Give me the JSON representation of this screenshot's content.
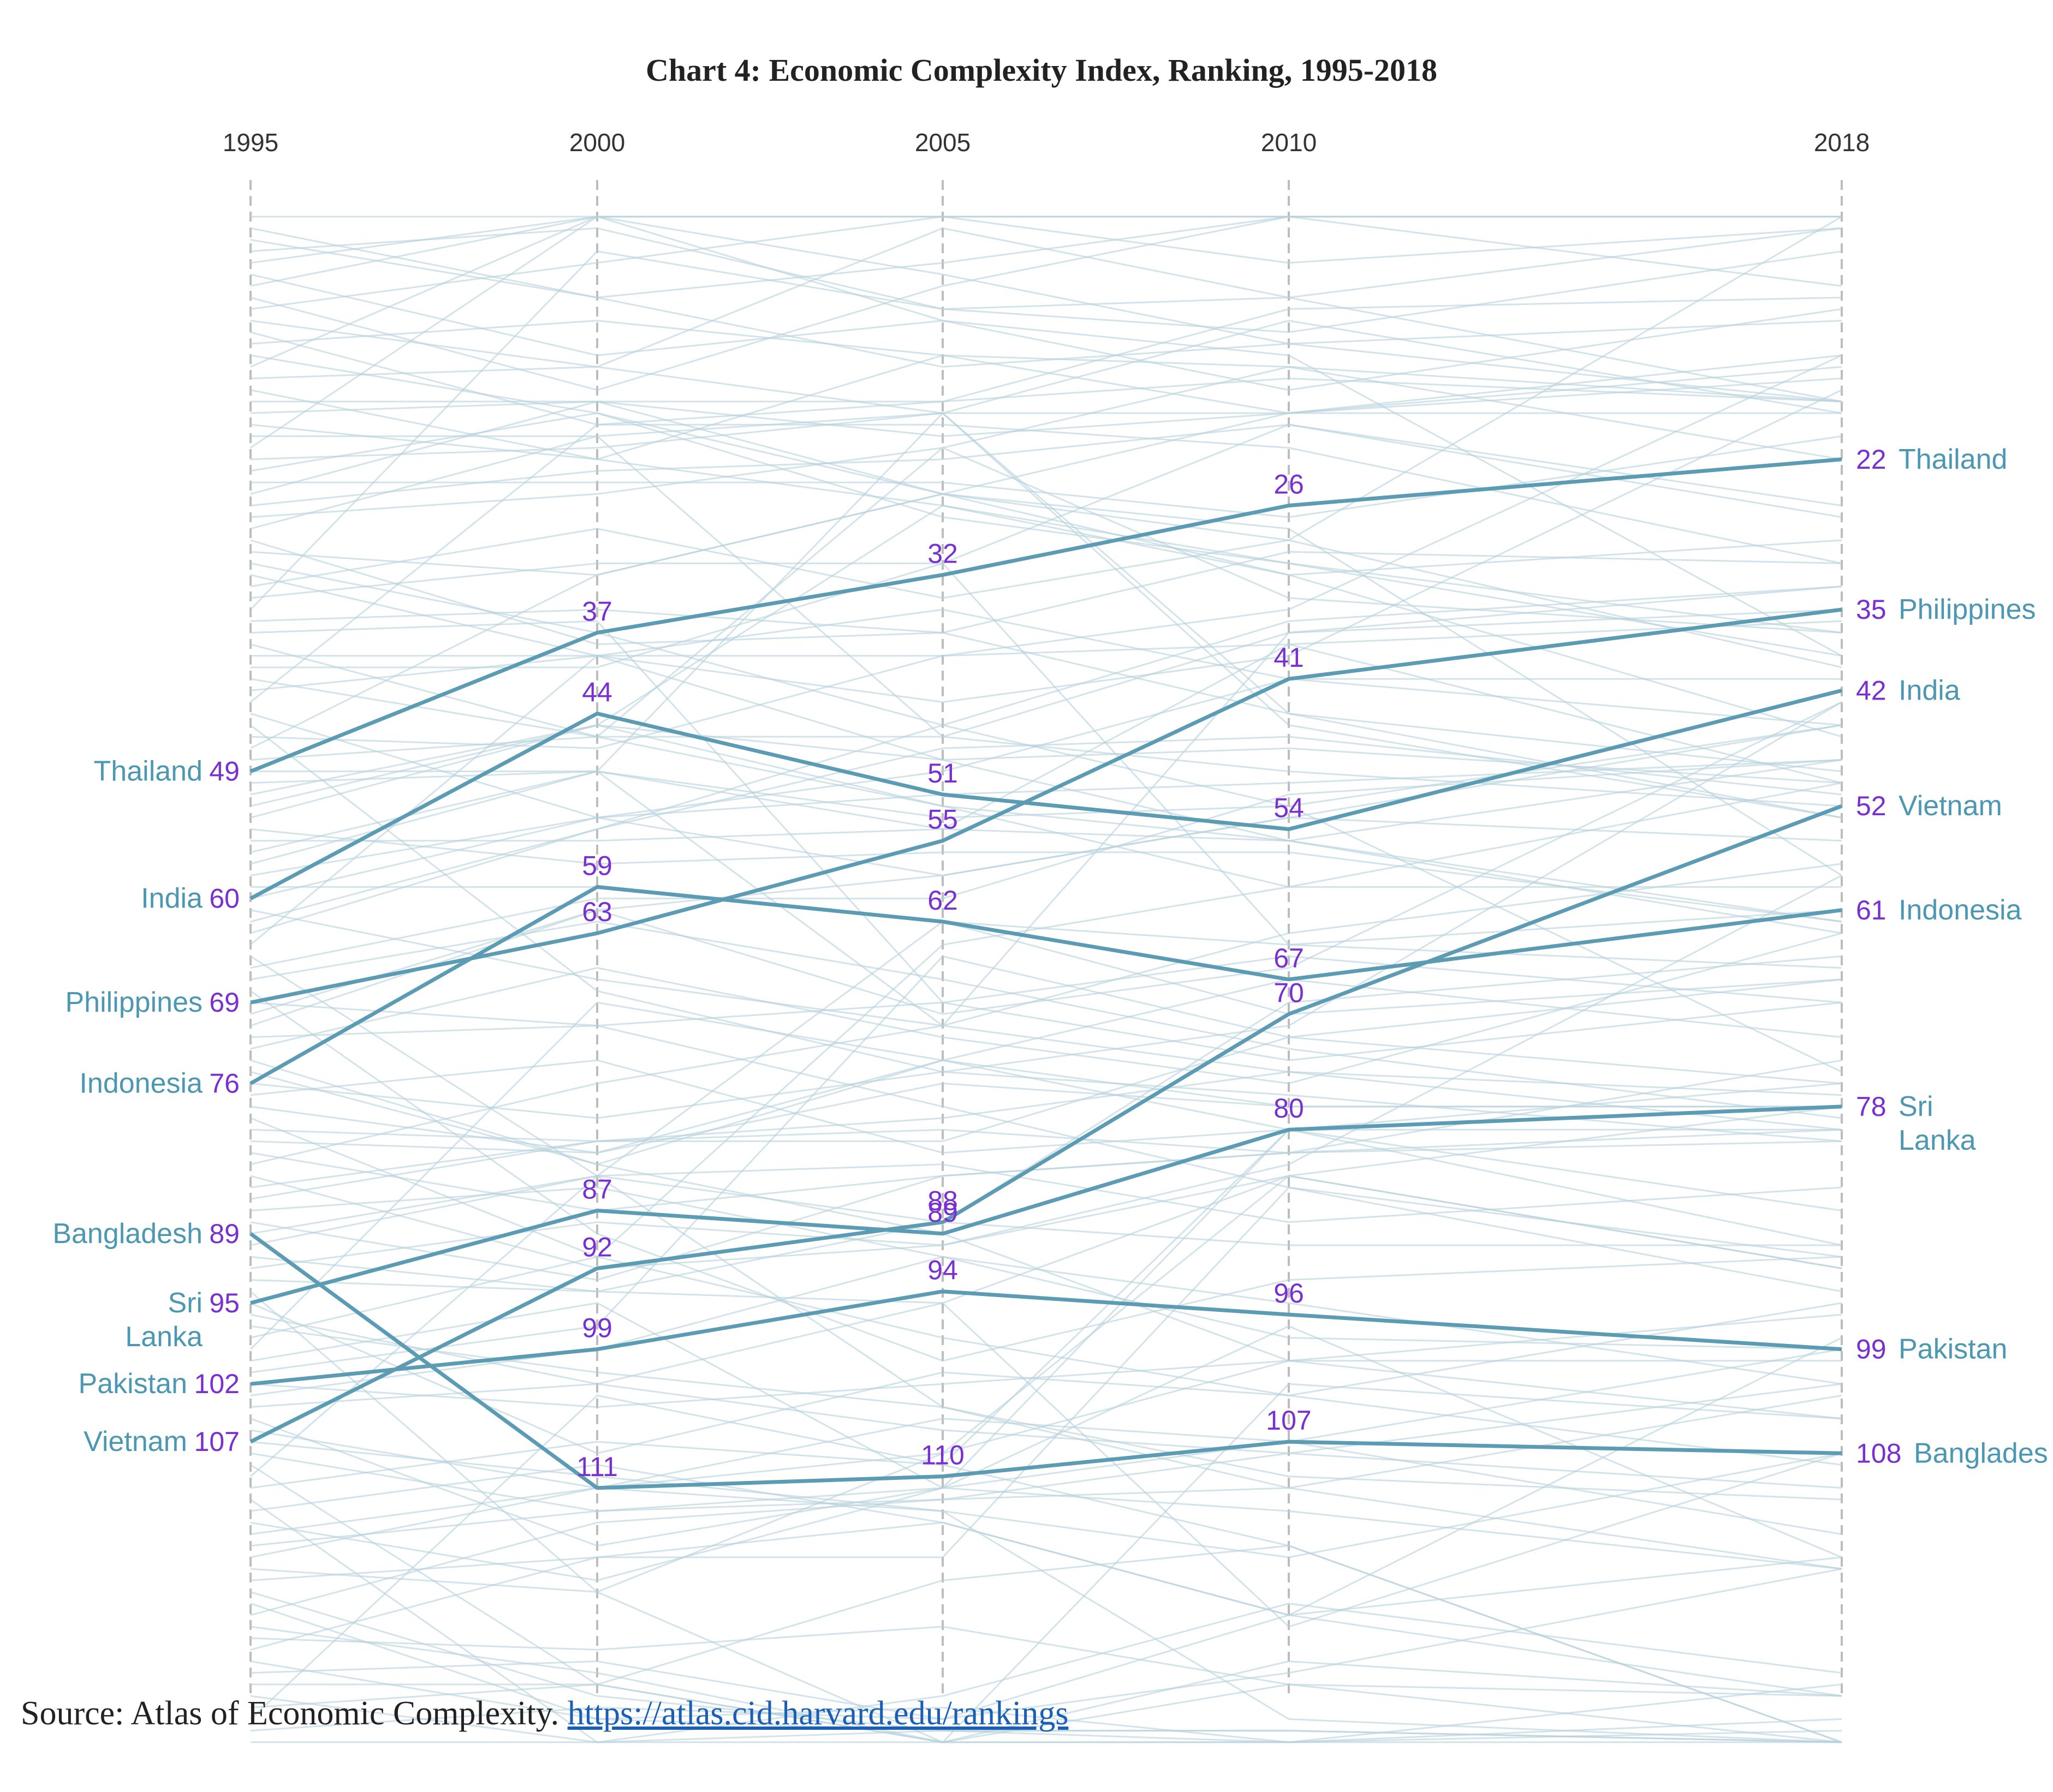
{
  "chart_data": {
    "type": "line",
    "title": "Chart 4: Economic Complexity Index, Ranking, 1995-2018",
    "x": [
      "1995",
      "2000",
      "2005",
      "2010",
      "2018"
    ],
    "y_axis": "rank (inverted, 1 at top)",
    "ylim": [
      1,
      133
    ],
    "grid": false,
    "background_lines": "faint light-blue lines for all other ranked countries",
    "colors": {
      "highlight_line": "#5b9bb4",
      "background_line": "#b5d0dc",
      "rank_label": "#7a2fd0",
      "country_label": "#4c97b2",
      "axis_dash": "#bdbdbd"
    },
    "series": [
      {
        "name": "Thailand",
        "start_lines": [
          "Thailand"
        ],
        "end_lines": [
          "Thailand"
        ],
        "values": [
          49,
          37,
          32,
          26,
          22
        ],
        "labels": [
          "49",
          "37",
          "32",
          "26",
          "22"
        ]
      },
      {
        "name": "India",
        "start_lines": [
          "India"
        ],
        "end_lines": [
          "India"
        ],
        "values": [
          60,
          44,
          51,
          54,
          42
        ],
        "labels": [
          "60",
          "44",
          "51",
          "54",
          "42"
        ]
      },
      {
        "name": "Philippines",
        "start_lines": [
          "Philippines"
        ],
        "end_lines": [
          "Philippines"
        ],
        "values": [
          69,
          63,
          55,
          41,
          35
        ],
        "labels": [
          "69",
          "63",
          "55",
          "41",
          "35"
        ]
      },
      {
        "name": "Indonesia",
        "start_lines": [
          "Indonesia"
        ],
        "end_lines": [
          "Indonesia"
        ],
        "values": [
          76,
          59,
          62,
          67,
          61
        ],
        "labels": [
          "76",
          "59",
          "62",
          "67",
          "61"
        ]
      },
      {
        "name": "Bangladesh",
        "start_lines": [
          "Bangladesh"
        ],
        "end_lines": [
          "Banglades"
        ],
        "values": [
          89,
          111,
          110,
          107,
          108
        ],
        "labels": [
          "89",
          "111",
          "110",
          "107",
          "108"
        ]
      },
      {
        "name": "Sri Lanka",
        "start_lines": [
          "Sri",
          "Lanka"
        ],
        "end_lines": [
          "Sri",
          "Lanka"
        ],
        "values": [
          95,
          87,
          89,
          80,
          78
        ],
        "labels": [
          "95",
          "87",
          "89",
          "80",
          "78"
        ]
      },
      {
        "name": "Pakistan",
        "start_lines": [
          "Pakistan"
        ],
        "end_lines": [
          "Pakistan"
        ],
        "values": [
          102,
          99,
          94,
          96,
          99
        ],
        "labels": [
          "102",
          "99",
          "94",
          "96",
          "99"
        ]
      },
      {
        "name": "Vietnam",
        "start_lines": [
          "Vietnam"
        ],
        "end_lines": [
          "Vietnam"
        ],
        "values": [
          107,
          92,
          88,
          70,
          52
        ],
        "labels": [
          "107",
          "92",
          "88",
          "70",
          "52"
        ]
      }
    ]
  },
  "source": {
    "prefix": "Source: Atlas of Economic Complexity. ",
    "link_text": "https://atlas.cid.harvard.edu/rankings"
  }
}
